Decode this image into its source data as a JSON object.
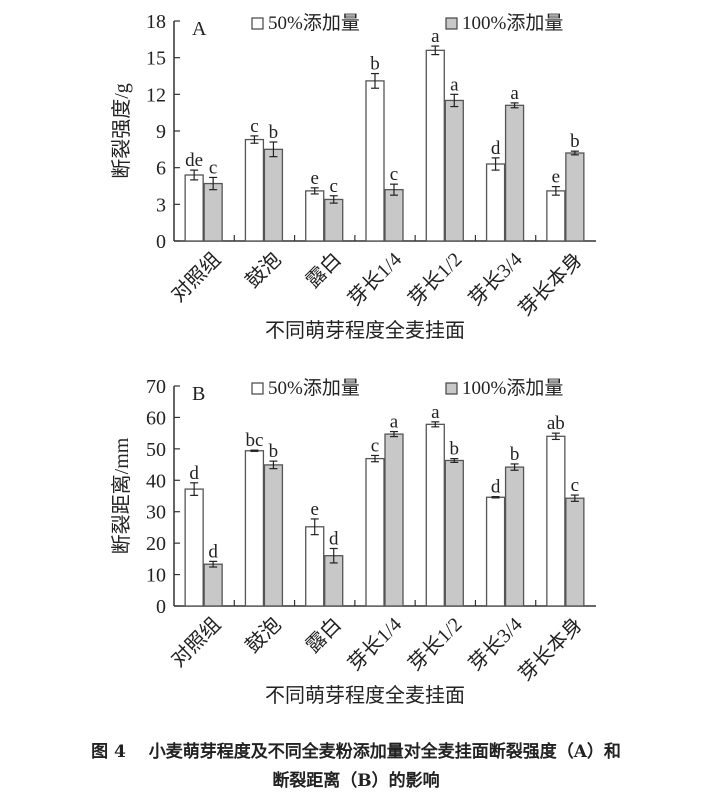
{
  "chart_data": [
    {
      "type": "bar",
      "panel_label": "A",
      "categories": [
        "对照组",
        "鼓泡",
        "露白",
        "芽长1/4",
        "芽长1/2",
        "芽长3/4",
        "芽长本身"
      ],
      "xlabel": "不同萌芽程度全麦挂面",
      "ylabel": "断裂强度/g",
      "ylim": [
        0,
        18
      ],
      "yticks": [
        0,
        3,
        6,
        9,
        12,
        15,
        18
      ],
      "legend_position": "top",
      "series": [
        {
          "name": "50%添加量",
          "color": "#ffffff",
          "values": [
            5.4,
            8.3,
            4.1,
            13.1,
            15.6,
            6.3,
            4.1
          ],
          "errors": [
            0.4,
            0.3,
            0.25,
            0.6,
            0.35,
            0.5,
            0.35
          ],
          "letters": [
            "de",
            "c",
            "e",
            "b",
            "a",
            "d",
            "e"
          ]
        },
        {
          "name": "100%添加量",
          "color": "#c8c8c8",
          "values": [
            4.7,
            7.5,
            3.4,
            4.2,
            11.5,
            11.1,
            7.2
          ],
          "errors": [
            0.5,
            0.6,
            0.3,
            0.45,
            0.5,
            0.2,
            0.15
          ],
          "letters": [
            "c",
            "b",
            "c",
            "c",
            "a",
            "a",
            "b"
          ]
        }
      ]
    },
    {
      "type": "bar",
      "panel_label": "B",
      "categories": [
        "对照组",
        "鼓泡",
        "露白",
        "芽长1/4",
        "芽长1/2",
        "芽长3/4",
        "芽长本身"
      ],
      "xlabel": "不同萌芽程度全麦挂面",
      "ylabel": "断裂距离/mm",
      "ylim": [
        0,
        70
      ],
      "yticks": [
        0,
        10,
        20,
        30,
        40,
        50,
        60,
        70
      ],
      "legend_position": "top",
      "series": [
        {
          "name": "50%添加量",
          "color": "#ffffff",
          "values": [
            37.2,
            49.4,
            25.2,
            46.9,
            57.8,
            34.6,
            54.0
          ],
          "errors": [
            2.0,
            0.2,
            2.5,
            1.0,
            0.8,
            0.2,
            1.0
          ],
          "letters": [
            "d",
            "bc",
            "e",
            "c",
            "a",
            "d",
            "ab"
          ]
        },
        {
          "name": "100%添加量",
          "color": "#c8c8c8",
          "values": [
            13.3,
            44.9,
            16.0,
            54.7,
            46.3,
            44.2,
            34.3
          ],
          "errors": [
            0.9,
            1.2,
            2.3,
            0.8,
            0.6,
            1.0,
            1.0
          ],
          "letters": [
            "d",
            "b",
            "d",
            "a",
            "b",
            "b",
            "c"
          ]
        }
      ]
    }
  ],
  "caption": {
    "line1": "图 4　 小麦萌芽程度及不同全麦粉添加量对全麦挂面断裂强度（A）和",
    "line2": "断裂距离（B）的影响"
  }
}
